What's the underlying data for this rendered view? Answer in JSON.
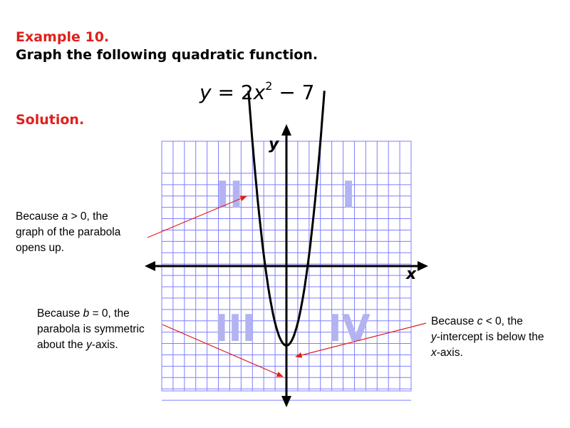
{
  "header": {
    "example": "Example 10.",
    "instruction": "Graph the following quadratic function."
  },
  "equation": {
    "y": "y",
    "mid": " = 2",
    "x": "x",
    "exp": "2",
    "tail": " − 7"
  },
  "solution": "Solution.",
  "graph": {
    "x_label": "x",
    "y_label": "y",
    "quadrants": [
      "I",
      "II",
      "III",
      "IV"
    ]
  },
  "annotations": [
    {
      "lines": [
        [
          "Because ",
          "a",
          " > 0, the"
        ],
        [
          "graph of the parabola"
        ],
        [
          "opens up."
        ]
      ]
    },
    {
      "lines": [
        [
          "Because ",
          "b",
          " = 0, the"
        ],
        [
          "parabola is symmetric"
        ],
        [
          "about the ",
          "y",
          "-axis."
        ]
      ]
    },
    {
      "lines": [
        [
          "Because ",
          "c",
          " < 0, the"
        ],
        [
          "y",
          "-intercept is below the"
        ],
        [
          "x",
          "-axis."
        ]
      ]
    }
  ]
}
